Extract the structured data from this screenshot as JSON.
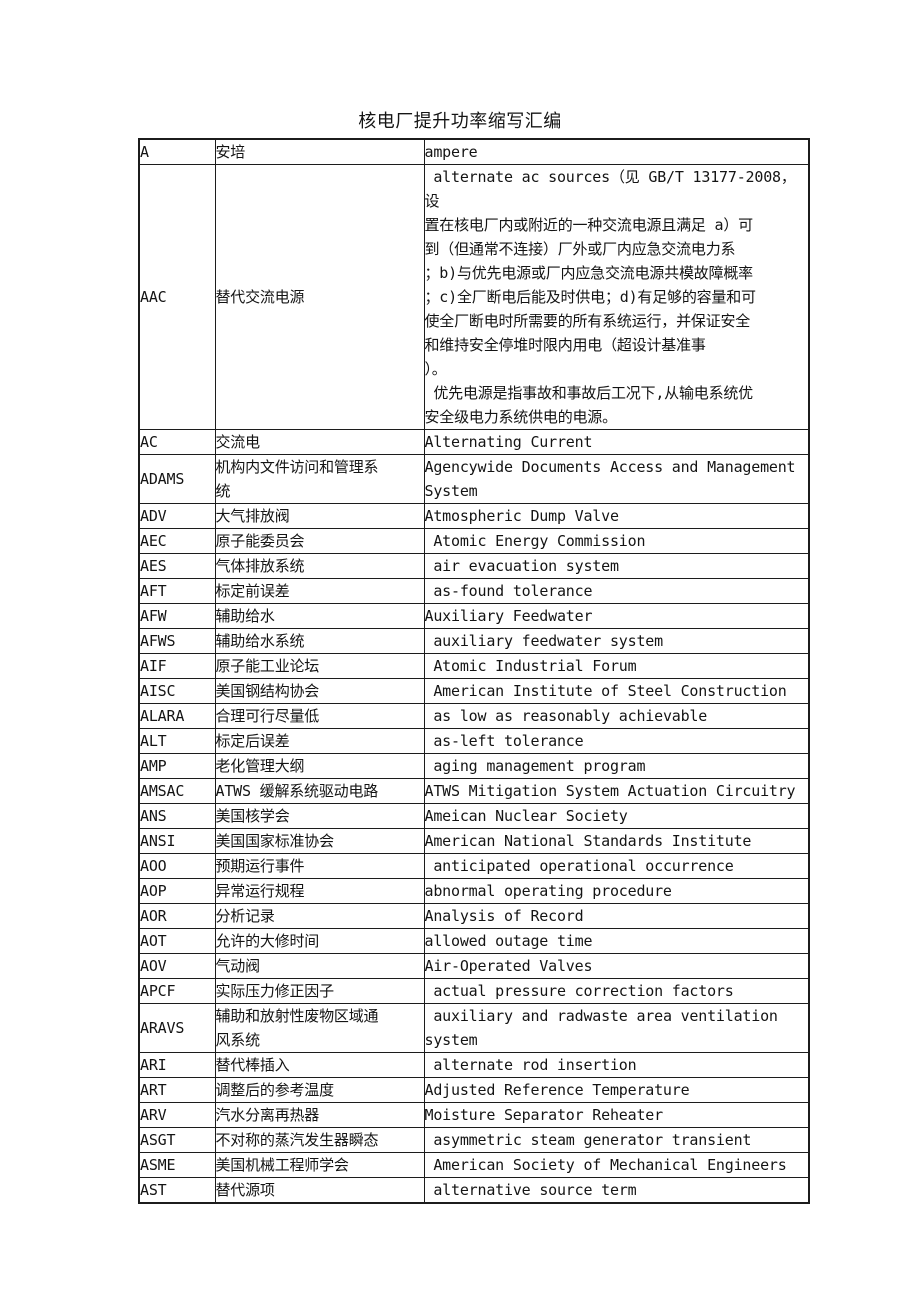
{
  "page_title": "核电厂提升功率缩写汇编",
  "table": {
    "column_keys": [
      "abbr",
      "cn",
      "en"
    ],
    "rows": [
      {
        "abbr": "A",
        "cn": "安培",
        "en": "ampere"
      },
      {
        "abbr": "AAC",
        "cn": "替代交流电源",
        "en": " alternate ac sources（见 GB/T 13177-2008，设\n置在核电厂内或附近的一种交流电源且满足 a）可\n到（但通常不连接）厂外或厂内应急交流电力系\n；b)与优先电源或厂内应急交流电源共模故障概率\n；c)全厂断电后能及时供电；d)有足够的容量和可\n使全厂断电时所需要的所有系统运行，并保证安全\n和维持安全停堆时限内用电（超设计基准事\n）。\n 优先电源是指事故和事故后工况下,从输电系统优\n安全级电力系统供电的电源。"
      },
      {
        "abbr": "AC",
        "cn": "交流电",
        "en": "Alternating Current"
      },
      {
        "abbr": "ADAMS",
        "cn": "机构内文件访问和管理系\n统",
        "en": "Agencywide Documents Access and Management\nSystem"
      },
      {
        "abbr": "ADV",
        "cn": "大气排放阀",
        "en": "Atmospheric Dump Valve"
      },
      {
        "abbr": "AEC",
        "cn": "原子能委员会",
        "en": " Atomic Energy Commission"
      },
      {
        "abbr": "AES",
        "cn": "气体排放系统",
        "en": " air evacuation system"
      },
      {
        "abbr": "AFT",
        "cn": "标定前误差",
        "en": " as-found tolerance"
      },
      {
        "abbr": "AFW",
        "cn": "辅助给水",
        "en": "Auxiliary Feedwater"
      },
      {
        "abbr": "AFWS",
        "cn": "辅助给水系统",
        "en": " auxiliary feedwater system"
      },
      {
        "abbr": "AIF",
        "cn": "原子能工业论坛",
        "en": " Atomic Industrial Forum"
      },
      {
        "abbr": "AISC",
        "cn": "美国钢结构协会",
        "en": " American Institute of Steel Construction"
      },
      {
        "abbr": "ALARA",
        "cn": "合理可行尽量低",
        "en": " as low as reasonably achievable"
      },
      {
        "abbr": "ALT",
        "cn": "标定后误差",
        "en": " as-left tolerance"
      },
      {
        "abbr": "AMP",
        "cn": "老化管理大纲",
        "en": " aging management program"
      },
      {
        "abbr": "AMSAC",
        "cn": "ATWS 缓解系统驱动电路",
        "en": "ATWS Mitigation System Actuation Circuitry"
      },
      {
        "abbr": "ANS",
        "cn": "美国核学会",
        "en": "Ameican Nuclear Society"
      },
      {
        "abbr": "ANSI",
        "cn": "美国国家标准协会",
        "en": "American National Standards Institute"
      },
      {
        "abbr": "AOO",
        "cn": "预期运行事件",
        "en": " anticipated operational occurrence"
      },
      {
        "abbr": "AOP",
        "cn": "异常运行规程",
        "en": "abnormal operating procedure"
      },
      {
        "abbr": "AOR",
        "cn": "分析记录",
        "en": "Analysis of Record"
      },
      {
        "abbr": "AOT",
        "cn": "允许的大修时间",
        "en": "allowed outage time"
      },
      {
        "abbr": "AOV",
        "cn": "气动阀",
        "en": "Air-Operated Valves"
      },
      {
        "abbr": "APCF",
        "cn": "实际压力修正因子",
        "en": " actual pressure correction factors"
      },
      {
        "abbr": "ARAVS",
        "cn": "辅助和放射性废物区域通\n风系统",
        "en": " auxiliary and radwaste area ventilation\nsystem"
      },
      {
        "abbr": "ARI",
        "cn": "替代棒插入",
        "en": " alternate rod insertion"
      },
      {
        "abbr": "ART",
        "cn": "调整后的参考温度",
        "en": "Adjusted Reference Temperature"
      },
      {
        "abbr": "ARV",
        "cn": "汽水分离再热器",
        "en": "Moisture Separator Reheater"
      },
      {
        "abbr": "ASGT",
        "cn": "不对称的蒸汽发生器瞬态",
        "en": " asymmetric steam generator transient"
      },
      {
        "abbr": "ASME",
        "cn": "美国机械工程师学会",
        "en": " American Society of Mechanical Engineers"
      },
      {
        "abbr": "AST",
        "cn": "替代源项",
        "en": " alternative source term"
      }
    ]
  }
}
